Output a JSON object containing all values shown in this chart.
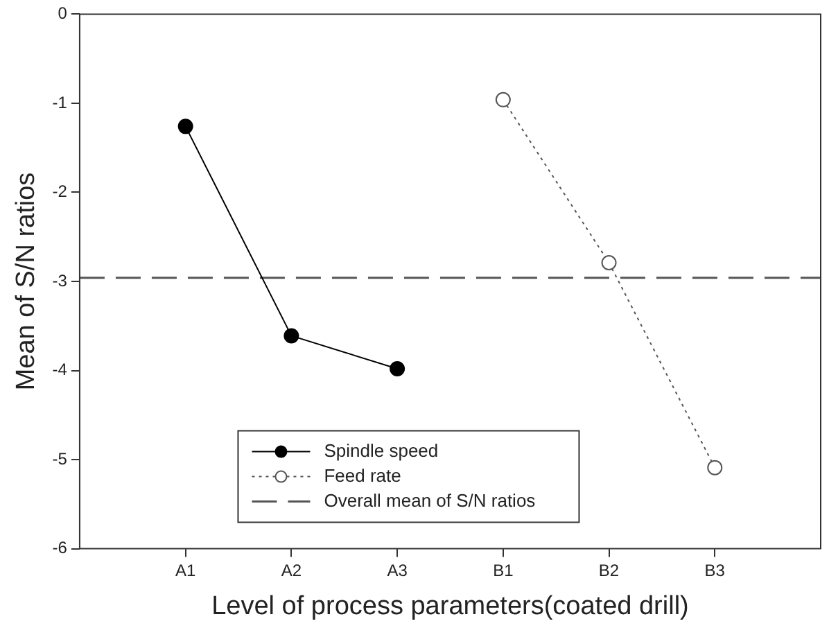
{
  "chart_data": {
    "type": "line",
    "xlabel": "Level of process parameters(coated drill)",
    "ylabel": "Mean of S/N ratios",
    "categories": [
      "A1",
      "A2",
      "A3",
      "B1",
      "B2",
      "B3"
    ],
    "series": [
      {
        "name": "Spindle speed",
        "color": "#000000",
        "values": [
          -1.26,
          -3.61,
          -3.98,
          null,
          null,
          null
        ],
        "marker": "circle",
        "line_style": "solid"
      },
      {
        "name": "Feed rate",
        "color": "#555555",
        "values": [
          null,
          null,
          null,
          -0.96,
          -2.79,
          -5.09
        ],
        "marker": "circle",
        "line_style": "dotted"
      }
    ],
    "ref_lines": [
      {
        "axis": "y",
        "value": -2.96,
        "label": "Overall mean of S/N ratios",
        "color": "#555555",
        "line_style": "dashed"
      }
    ],
    "ylim": [
      -6,
      0
    ],
    "yticks": [
      0,
      -1,
      -2,
      -3,
      -4,
      -5,
      -6
    ],
    "grid": false,
    "legend": "bottom"
  }
}
